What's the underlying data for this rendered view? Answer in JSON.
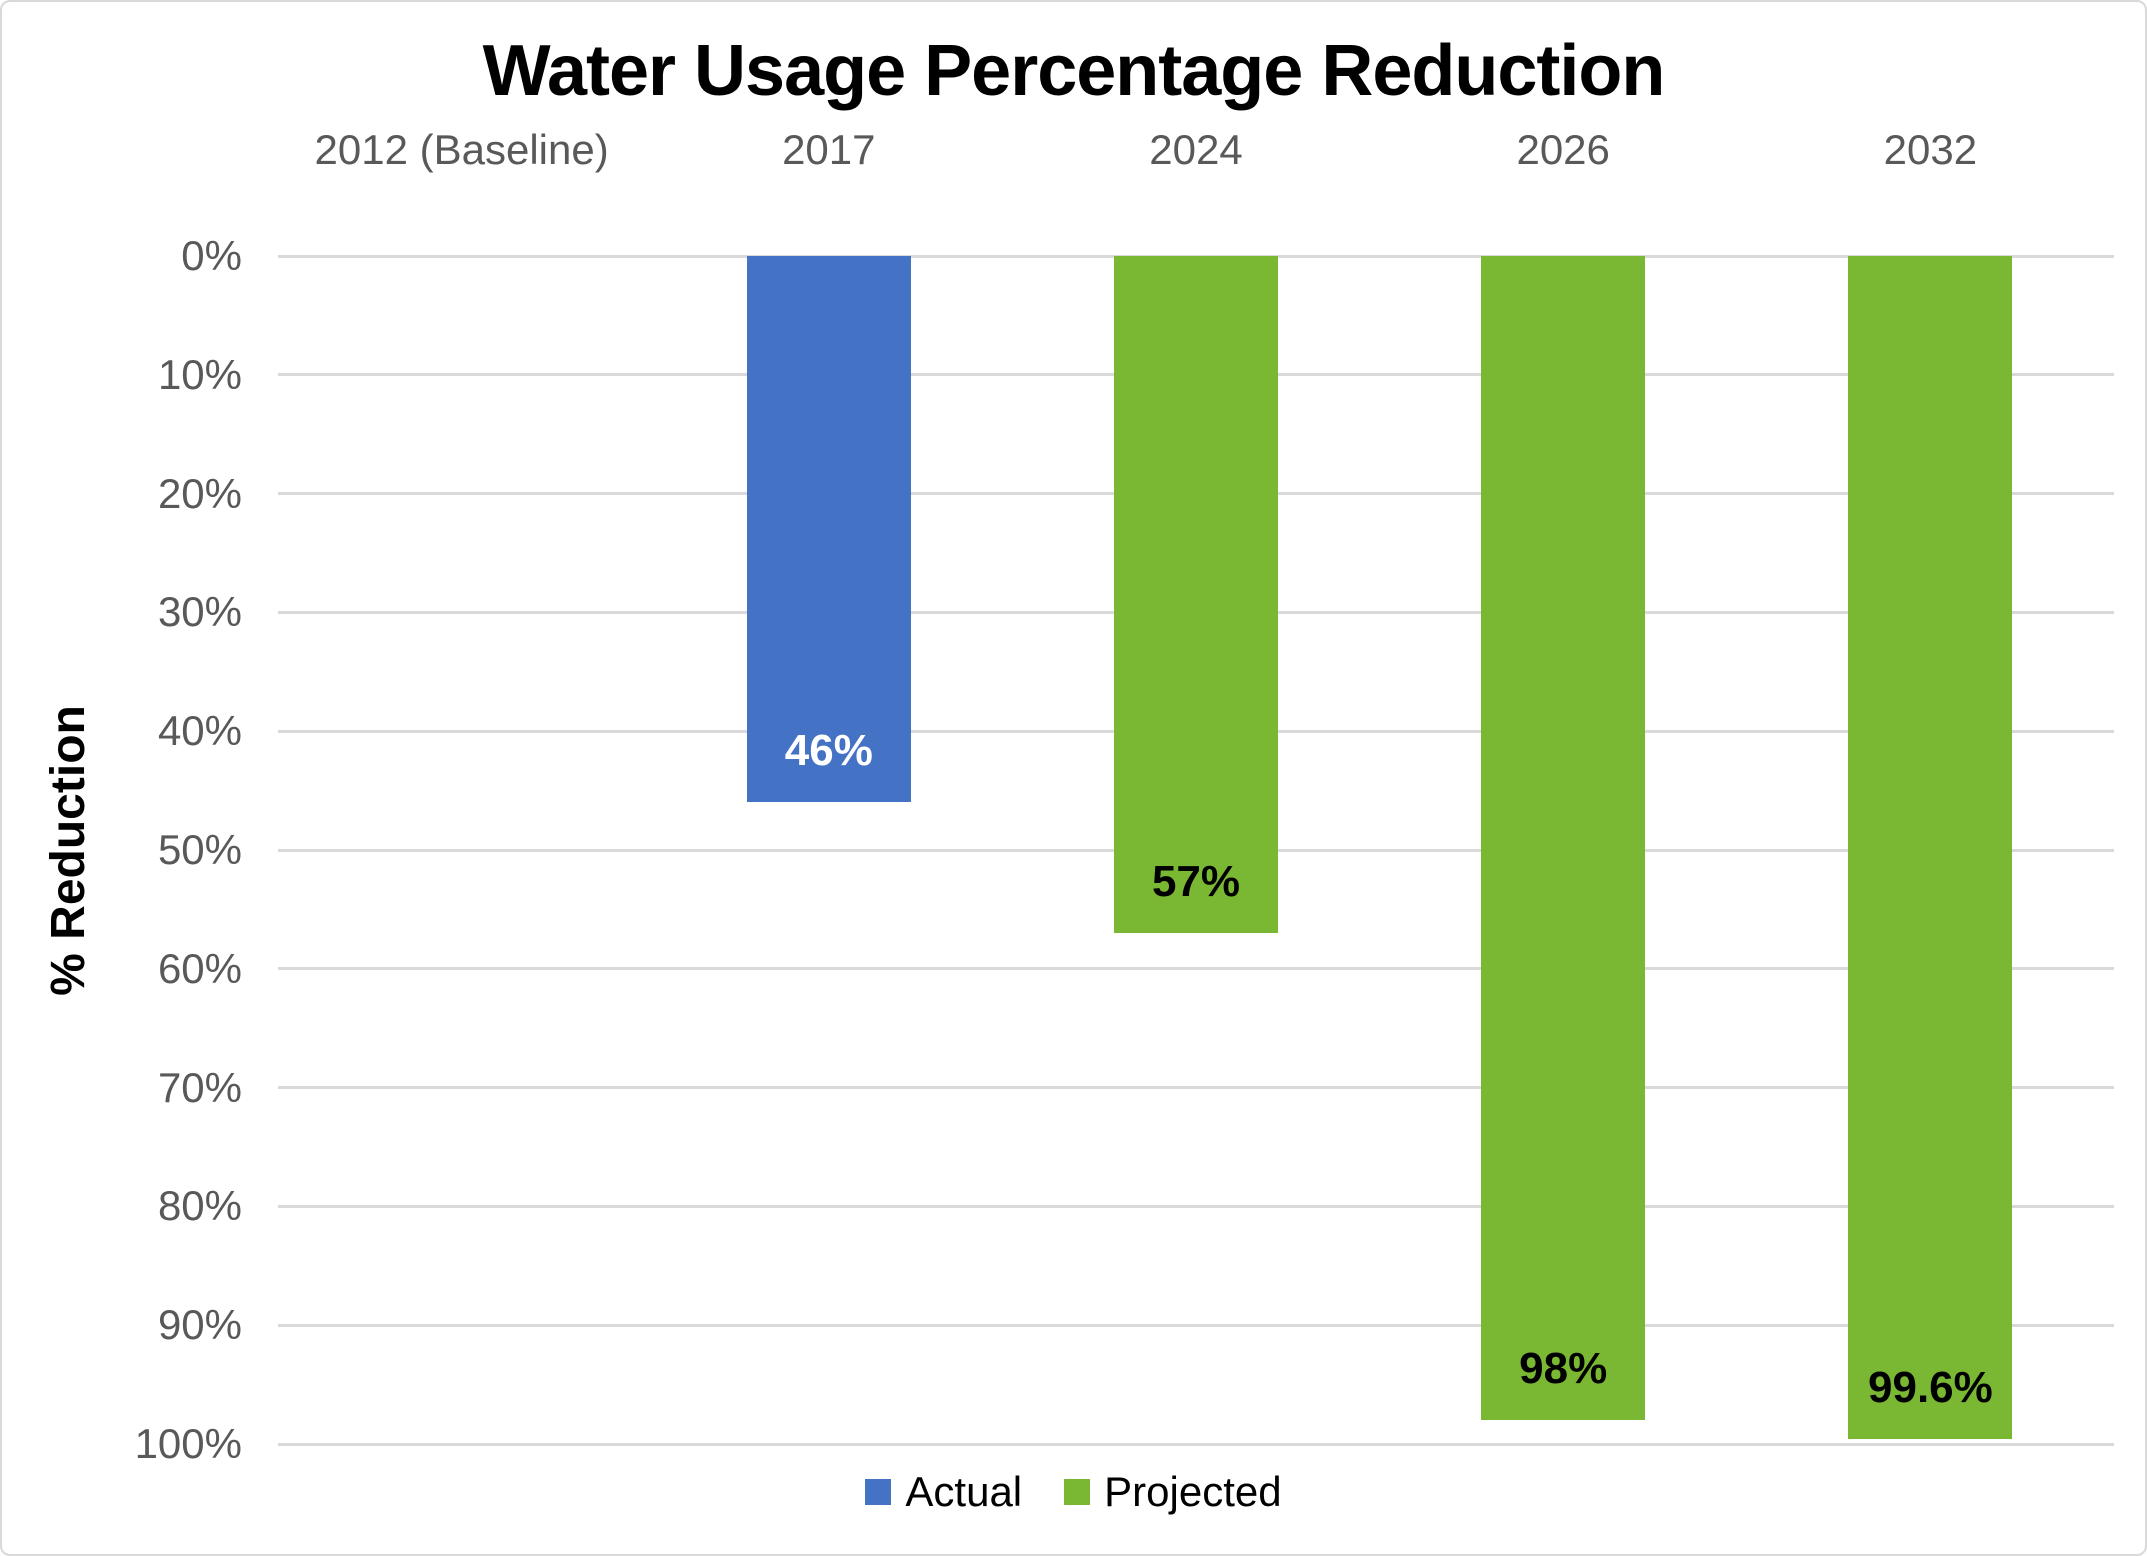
{
  "chart_data": {
    "type": "bar",
    "title": "Water Usage Percentage Reduction",
    "ylabel": "% Reduction",
    "categories": [
      "2012 (Baseline)",
      "2017",
      "2024",
      "2026",
      "2032"
    ],
    "series": [
      {
        "name": "Actual",
        "color": "#4472C4",
        "label_color": "#FFFFFF",
        "values": [
          null,
          46,
          null,
          null,
          null
        ],
        "labels": [
          null,
          "46%",
          null,
          null,
          null
        ]
      },
      {
        "name": "Projected",
        "color": "#7AB733",
        "label_color": "#000000",
        "values": [
          null,
          null,
          57,
          98,
          99.6
        ],
        "labels": [
          null,
          null,
          "57%",
          "98%",
          "99.6%"
        ]
      }
    ],
    "y_ticks": [
      "0%",
      "10%",
      "20%",
      "30%",
      "40%",
      "50%",
      "60%",
      "70%",
      "80%",
      "90%",
      "100%"
    ],
    "ylim": [
      0,
      100
    ],
    "y_axis_inverted": true,
    "grid": true,
    "legend_position": "bottom",
    "styles": {
      "background": "#FFFFFF",
      "border_color": "#D9D9D9",
      "grid_color": "#D9D9D9",
      "axis_text_color": "#595959",
      "title_color": "#000000"
    }
  }
}
